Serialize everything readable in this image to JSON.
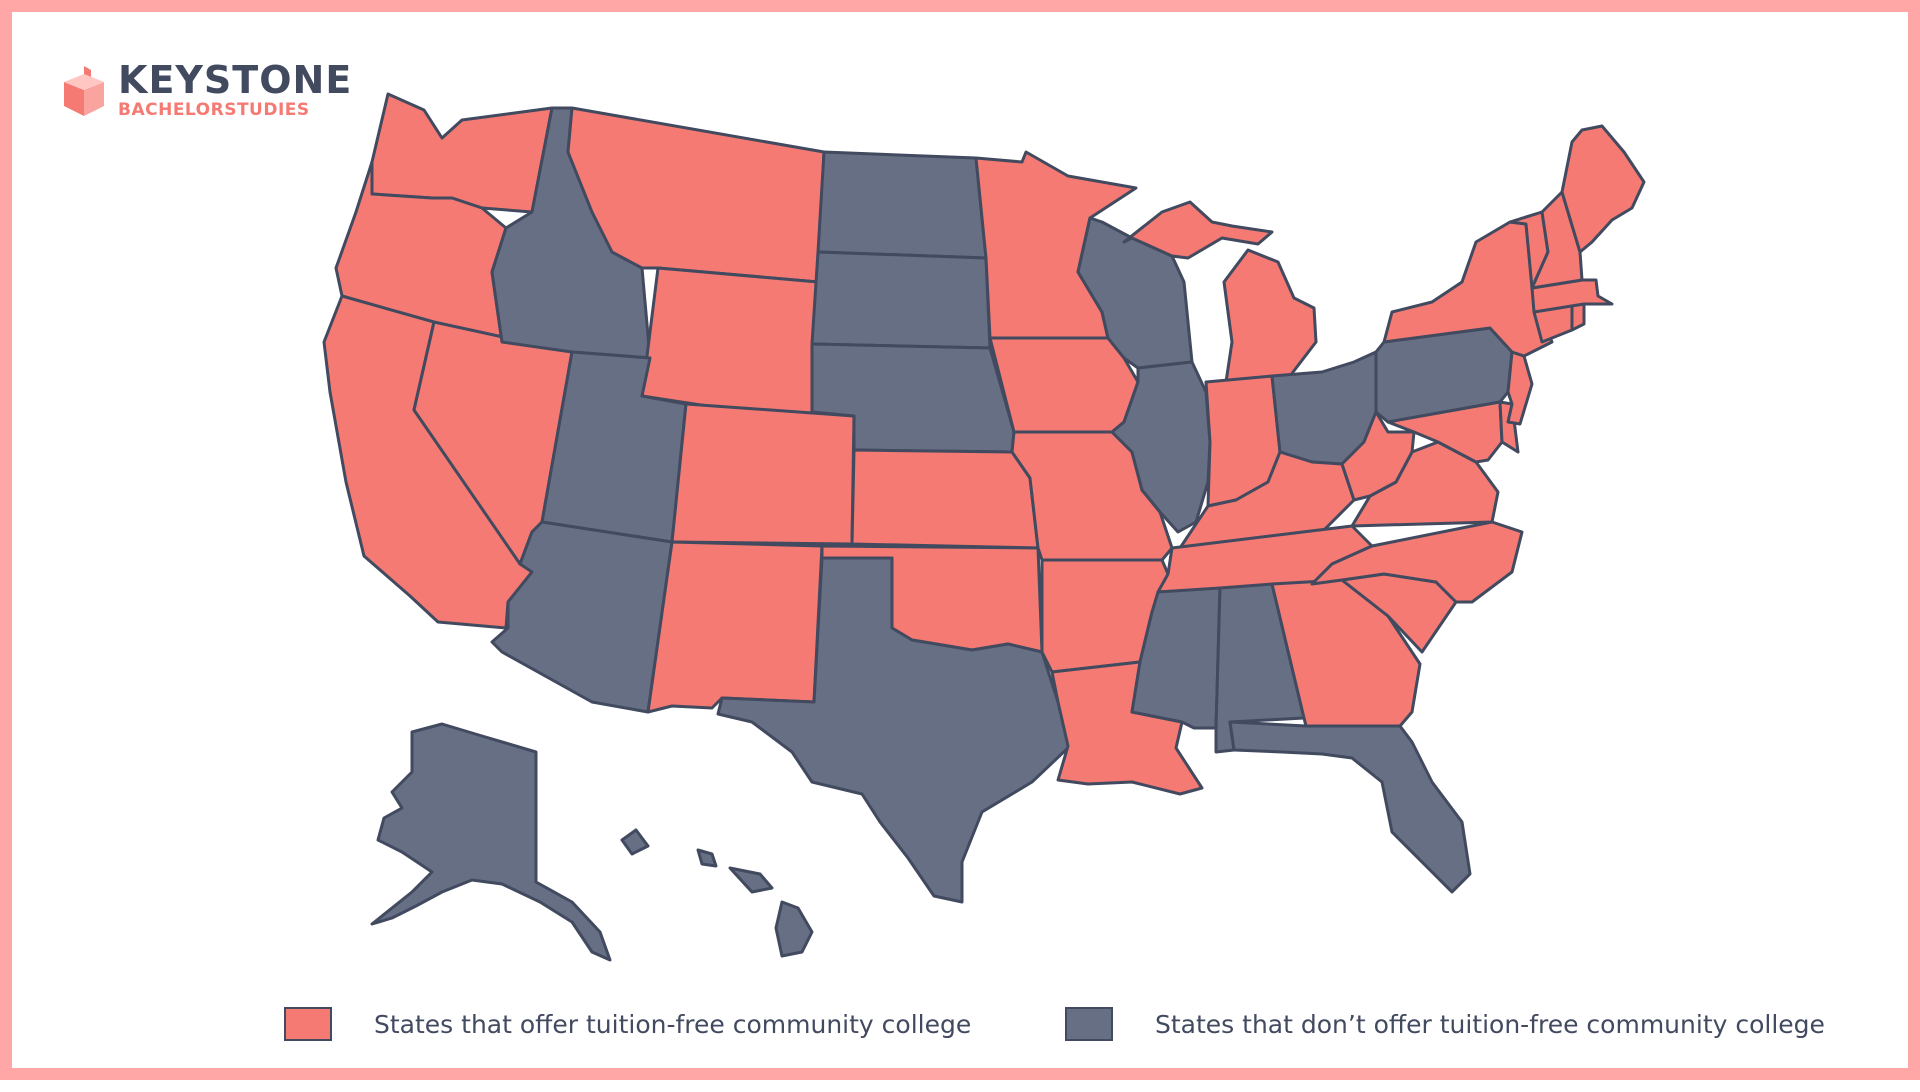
{
  "brand": {
    "title": "KEYSTONE",
    "subtitle": "BACHELORSTUDIES"
  },
  "colors": {
    "offers": "#f47a73",
    "does_not_offer": "#666f84",
    "border": "#424a60",
    "frame": "#ffa6a6"
  },
  "legend": {
    "offers_label": "States that offer tuition-free community college",
    "does_not_offer_label": "States that don’t offer tuition-free community college"
  },
  "states_offering": [
    "Washington",
    "Oregon",
    "California",
    "Nevada",
    "Montana",
    "Wyoming",
    "Colorado",
    "New Mexico",
    "Kansas",
    "Oklahoma",
    "Minnesota",
    "Iowa",
    "Missouri",
    "Arkansas",
    "Louisiana",
    "Michigan",
    "Indiana",
    "Kentucky",
    "Tennessee",
    "West Virginia",
    "Virginia",
    "North Carolina",
    "South Carolina",
    "Georgia",
    "Maryland",
    "Delaware",
    "New Jersey",
    "New York",
    "Connecticut",
    "Rhode Island",
    "Massachusetts",
    "Vermont",
    "New Hampshire",
    "Maine"
  ],
  "states_not_offering": [
    "Idaho",
    "Utah",
    "Arizona",
    "North Dakota",
    "South Dakota",
    "Nebraska",
    "Texas",
    "Wisconsin",
    "Illinois",
    "Mississippi",
    "Alabama",
    "Florida",
    "Ohio",
    "Pennsylvania",
    "Alaska",
    "Hawaii"
  ]
}
